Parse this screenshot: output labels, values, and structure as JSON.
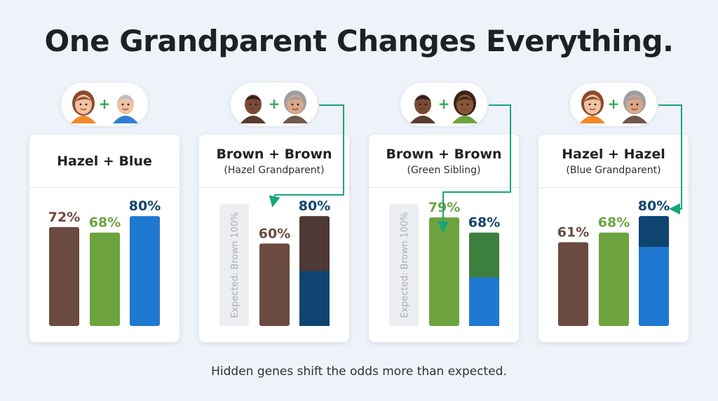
{
  "title": "One Grandparent Changes Everything.",
  "footer": "Hidden genes shift the odds more than expected.",
  "colors": {
    "brown": "#6b4a3f",
    "green": "#6da33e",
    "darkgreen": "#3c7f3f",
    "blue": "#1f78d1",
    "navy": "#0f4470",
    "darkbrown": "#4f3934",
    "arrow": "#17a57c",
    "ghost": "#eceef1"
  },
  "panels": [
    {
      "title": "Hazel + Blue",
      "subtitle": "",
      "ghost_label": "",
      "avatars": [
        "woman-brown-hair-icon",
        "older-man-gray-hair-icon"
      ]
    },
    {
      "title": "Brown + Brown",
      "subtitle": "(Hazel Grandparent)",
      "ghost_label": "Expected: Brown 100%",
      "avatars": [
        "dark-skinned-man-icon",
        "grandmother-gray-hair-icon"
      ]
    },
    {
      "title": "Brown + Brown",
      "subtitle": "(Green Sibling)",
      "ghost_label": "Expected: Brown 100%",
      "avatars": [
        "dark-skinned-man-icon",
        "dark-skinned-woman-icon"
      ]
    },
    {
      "title": "Hazel + Hazel",
      "subtitle": "(Blue Grandparent)",
      "ghost_label": "",
      "avatars": [
        "woman-brown-hair-icon",
        "grandmother-gray-hair-icon"
      ]
    }
  ],
  "chart_data": [
    {
      "type": "bar",
      "title": "Hazel + Blue",
      "categories": [
        "",
        "",
        ""
      ],
      "values": [
        72,
        68,
        80
      ],
      "labels": [
        "72%",
        "68%",
        "80%"
      ],
      "colors": [
        "brown",
        "green",
        "blue"
      ],
      "segments": [
        null,
        null,
        null
      ],
      "ylim": [
        0,
        100
      ]
    },
    {
      "type": "bar",
      "title": "Brown + Brown",
      "subtitle": "(Hazel Grandparent)",
      "categories": [
        "",
        ""
      ],
      "values": [
        60,
        80
      ],
      "labels": [
        "60%",
        "80%"
      ],
      "colors": [
        "brown",
        "darkbrown"
      ],
      "segments": [
        null,
        {
          "lower_fraction": 0.5,
          "lower_color": "navy"
        }
      ],
      "expected": {
        "label": "Expected: Brown 100%",
        "value": 100
      },
      "ylim": [
        0,
        100
      ]
    },
    {
      "type": "bar",
      "title": "Brown + Brown",
      "subtitle": "(Green Sibling)",
      "categories": [
        "",
        ""
      ],
      "values": [
        79,
        68
      ],
      "labels": [
        "79%",
        "68%"
      ],
      "colors": [
        "green",
        "darkgreen"
      ],
      "segments": [
        null,
        {
          "lower_fraction": 0.52,
          "lower_color": "blue"
        }
      ],
      "expected": {
        "label": "Expected: Brown 100%",
        "value": 100
      },
      "ylim": [
        0,
        100
      ]
    },
    {
      "type": "bar",
      "title": "Hazel + Hazel",
      "subtitle": "(Blue Grandparent)",
      "categories": [
        "",
        "",
        ""
      ],
      "values": [
        61,
        68,
        80
      ],
      "labels": [
        "61%",
        "68%",
        "80%"
      ],
      "colors": [
        "brown",
        "green",
        "blue"
      ],
      "segments": [
        null,
        null,
        {
          "upper_fraction": 0.28,
          "upper_color": "navy"
        }
      ],
      "ylim": [
        0,
        100
      ]
    }
  ]
}
